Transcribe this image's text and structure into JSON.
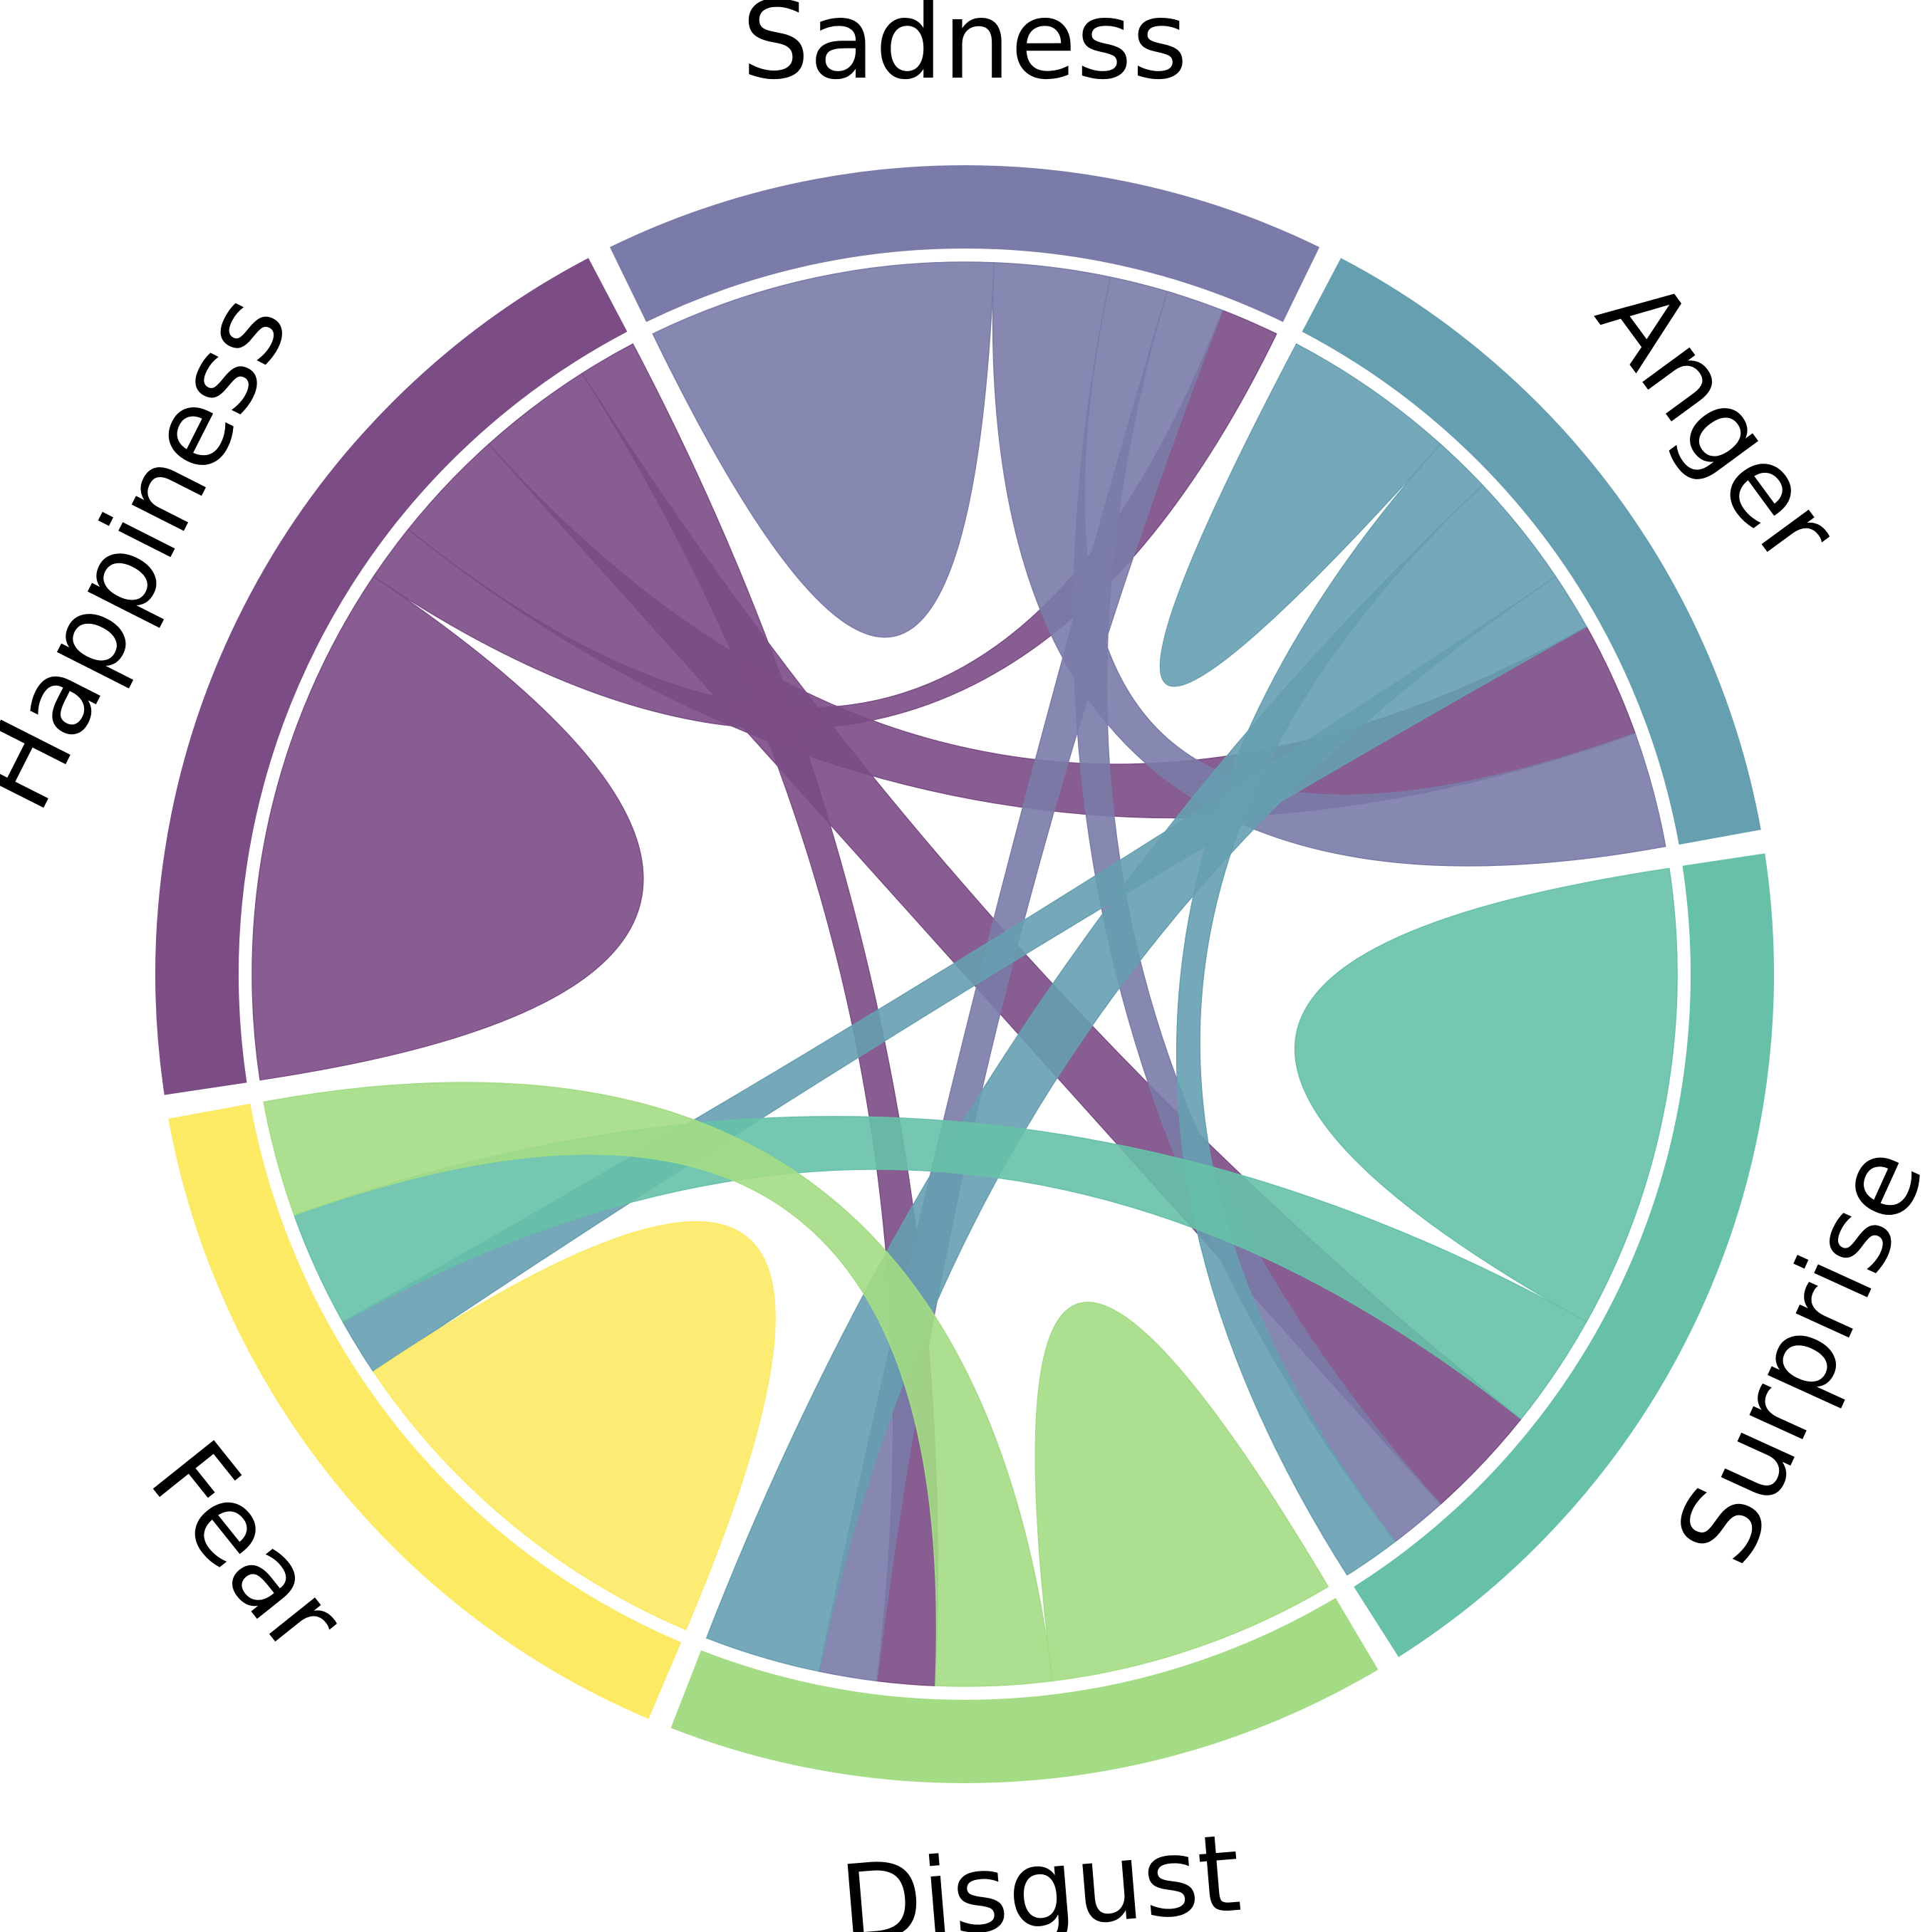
{
  "chart_data": {
    "type": "chord",
    "groups": [
      {
        "name": "Happiness",
        "color": "#7b4c86"
      },
      {
        "name": "Sadness",
        "color": "#7a7ba8"
      },
      {
        "name": "Anger",
        "color": "#669fb0"
      },
      {
        "name": "Surprise",
        "color": "#66c1a8"
      },
      {
        "name": "Disgust",
        "color": "#a3dc84"
      },
      {
        "name": "Fear",
        "color": "#fcea65"
      }
    ],
    "matrix": [
      [
        9,
        1,
        2,
        2,
        1,
        0
      ],
      [
        1,
        6,
        2,
        1,
        1,
        0
      ],
      [
        2,
        2,
        3,
        1,
        2,
        1
      ],
      [
        2,
        1,
        1,
        8,
        0,
        2
      ],
      [
        1,
        1,
        2,
        0,
        5,
        2
      ],
      [
        0,
        0,
        1,
        2,
        2,
        7
      ]
    ],
    "title": "",
    "legend": "none"
  }
}
